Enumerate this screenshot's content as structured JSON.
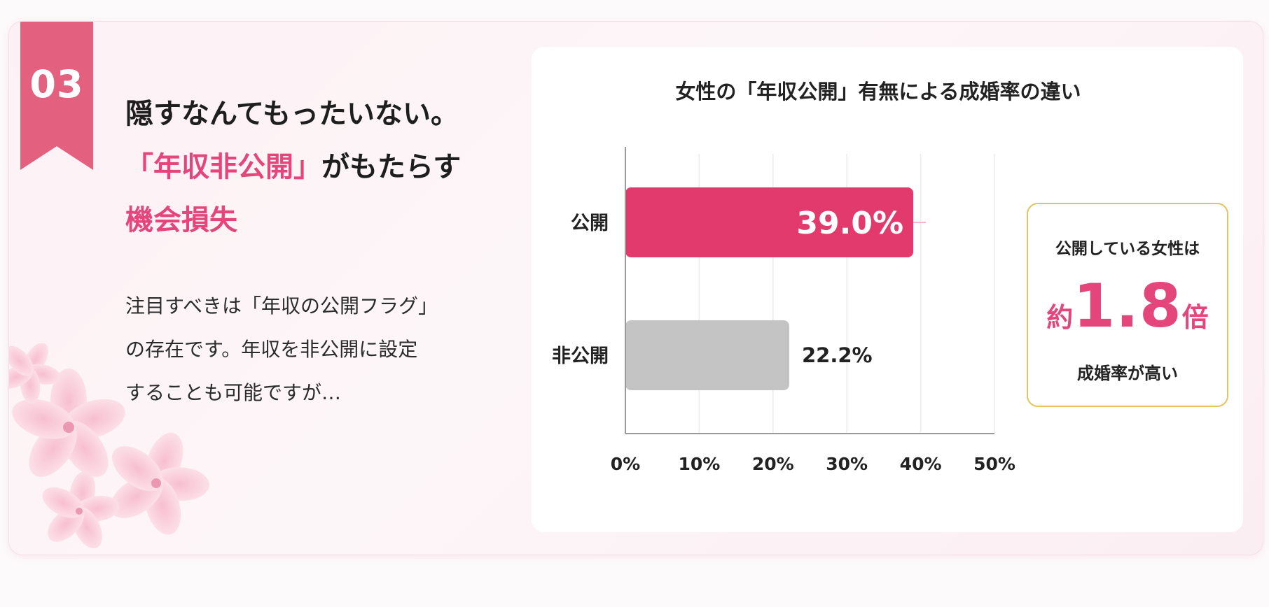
{
  "section_number": "03",
  "headline": {
    "line1": "隠すなんてもったいない。",
    "line2_pink": "「年収非公開」",
    "line2_rest": "がもたらす",
    "line3": "機会損失"
  },
  "body": {
    "line1": "注目すべきは「年収の公開フラグ」",
    "line2": "の存在です。年収を非公開に設定",
    "line3": "することも可能ですが…"
  },
  "chart_data": {
    "type": "bar",
    "orientation": "horizontal",
    "title": "女性の「年収公開」有無による成婚率の違い",
    "categories": [
      "公開",
      "非公開"
    ],
    "values": [
      39.0,
      22.2
    ],
    "value_labels": [
      "39.0%",
      "22.2%"
    ],
    "colors": [
      "#e23a6c",
      "#c4c4c4"
    ],
    "xlim": [
      0,
      50
    ],
    "ticks": [
      0,
      10,
      20,
      30,
      40,
      50
    ],
    "tick_labels": [
      "0%",
      "10%",
      "20%",
      "30%",
      "40%",
      "50%"
    ],
    "grid": true
  },
  "callout": {
    "line1": "公開している女性は",
    "prefix": "約",
    "value": "1.8",
    "suffix": "倍",
    "line3": "成婚率が高い"
  },
  "colors": {
    "accent": "#e4457a",
    "ribbon": "#e4607f",
    "callout_border": "#e7c25e"
  }
}
